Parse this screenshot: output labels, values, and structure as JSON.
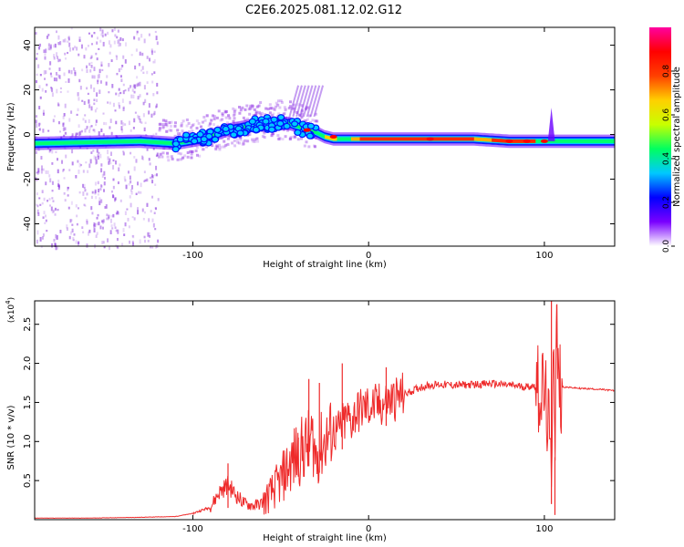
{
  "page": {
    "title": "C2E6.2025.081.12.02.G12"
  },
  "chart_data": [
    {
      "type": "heatmap",
      "title": "C2E6.2025.081.12.02.G12",
      "xlabel": "Height of straight line (km)",
      "ylabel": "Frequency (Hz)",
      "xlim": [
        -190,
        140
      ],
      "ylim": [
        -50,
        48
      ],
      "x_ticks": [
        -100,
        0,
        100
      ],
      "y_ticks": [
        -40,
        -20,
        0,
        20,
        40
      ],
      "colorbar": {
        "label": "Normalized spectral amplitude",
        "range": [
          0,
          1
        ],
        "ticks": [
          0.0,
          0.2,
          0.4,
          0.6,
          0.8
        ],
        "tick_labels": [
          "0.0",
          "0.2",
          "0.4",
          "0.6",
          "0.8"
        ],
        "colors": [
          "#ffffff",
          "#7a00ff",
          "#0000ff",
          "#00c8ff",
          "#00ff60",
          "#c8ff00",
          "#ffd000",
          "#ff4000",
          "#ff0000",
          "#ff00a0"
        ]
      },
      "ridge": {
        "x": [
          -190,
          -160,
          -130,
          -110,
          -95,
          -80,
          -60,
          -45,
          -35,
          -30,
          -25,
          -20,
          -10,
          0,
          20,
          40,
          60,
          80,
          95,
          100,
          105,
          120,
          140
        ],
        "y": [
          -4,
          -3.5,
          -3,
          -4,
          -2,
          2,
          5,
          5,
          2,
          1,
          -1,
          -2,
          -2,
          -2,
          -2,
          -2,
          -2,
          -3,
          -3,
          -3,
          -3,
          -3,
          -3
        ]
      }
    },
    {
      "type": "line",
      "xlabel": "Height of straight line (km)",
      "ylabel": "SNR (10 * v/v)",
      "y_multiplier": "(x10",
      "y_multiplier_exp": "4",
      "y_multiplier_close": ")",
      "xlim": [
        -190,
        140
      ],
      "ylim": [
        0,
        2.8
      ],
      "x_ticks": [
        -100,
        0,
        100
      ],
      "y_ticks": [
        0.5,
        1.0,
        1.5,
        2.0,
        2.5
      ],
      "y_tick_labels": [
        "0.5",
        "1.0",
        "1.5",
        "2.0",
        "2.5"
      ],
      "series": [
        {
          "color": "#ee2a2a",
          "x": [
            -190,
            -160,
            -130,
            -110,
            -100,
            -90,
            -85,
            -80,
            -75,
            -70,
            -65,
            -60,
            -55,
            -50,
            -45,
            -40,
            -35,
            -32,
            -30,
            -28,
            -25,
            -22,
            -20,
            -18,
            -15,
            -12,
            -10,
            -8,
            -5,
            0,
            5,
            10,
            15,
            20,
            25,
            30,
            35,
            40,
            50,
            60,
            70,
            80,
            90,
            95,
            100,
            102,
            104,
            105,
            106,
            107,
            108,
            110,
            115,
            120,
            130,
            140
          ],
          "y": [
            0.02,
            0.02,
            0.03,
            0.04,
            0.08,
            0.16,
            0.35,
            0.45,
            0.3,
            0.2,
            0.18,
            0.22,
            0.35,
            0.5,
            0.7,
            0.85,
            0.95,
            1.05,
            0.8,
            0.9,
            1.0,
            1.1,
            1.15,
            1.1,
            1.2,
            1.3,
            1.25,
            1.35,
            1.4,
            1.45,
            1.45,
            1.5,
            1.55,
            1.6,
            1.65,
            1.7,
            1.72,
            1.73,
            1.72,
            1.73,
            1.74,
            1.72,
            1.7,
            1.72,
            1.6,
            1.3,
            0.5,
            2.7,
            1.1,
            2.5,
            1.7,
            1.7,
            1.69,
            1.68,
            1.67,
            1.65
          ]
        }
      ],
      "spikes": [
        {
          "x": -80,
          "y": 0.72
        },
        {
          "x": -40,
          "y": 1.05
        },
        {
          "x": -34,
          "y": 1.8
        },
        {
          "x": -28,
          "y": 1.75
        },
        {
          "x": -15,
          "y": 2.0
        },
        {
          "x": 10,
          "y": 1.95
        },
        {
          "x": 104,
          "y": 2.8
        },
        {
          "x": 106,
          "y": 0.06
        },
        {
          "x": 107,
          "y": 2.75
        }
      ]
    }
  ]
}
